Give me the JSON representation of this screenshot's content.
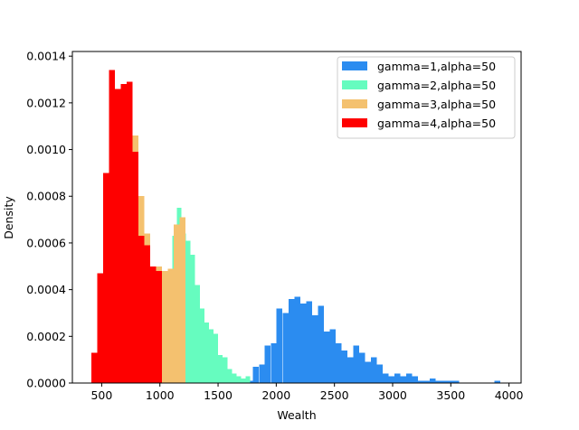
{
  "chart_data": {
    "type": "bar",
    "title": "",
    "xlabel": "Wealth",
    "ylabel": "Density",
    "xlim": [
      248,
      4104
    ],
    "ylim": [
      0,
      0.00142
    ],
    "xticks": [
      500,
      1000,
      1500,
      2000,
      2500,
      3000,
      3500,
      4000
    ],
    "xtick_labels": [
      "500",
      "1000",
      "1500",
      "2000",
      "2500",
      "3000",
      "3500",
      "4000"
    ],
    "yticks": [
      0,
      0.0002,
      0.0004,
      0.0006,
      0.0008,
      0.001,
      0.0012,
      0.0014
    ],
    "ytick_labels": [
      "0.0000",
      "0.0002",
      "0.0004",
      "0.0006",
      "0.0008",
      "0.0010",
      "0.0012",
      "0.0014"
    ],
    "grid": false,
    "legend_position": "top-right",
    "series": [
      {
        "name": "gamma=1,alpha=50",
        "color": "#2b8cf0",
        "bin_width": 50.6,
        "x": [
          1725,
          1775,
          1826,
          1877,
          1927,
          1978,
          2028,
          2079,
          2130,
          2180,
          2231,
          2281,
          2332,
          2383,
          2433,
          2484,
          2535,
          2585,
          2636,
          2686,
          2737,
          2788,
          2838,
          2889,
          2939,
          2990,
          3041,
          3091,
          3142,
          3193,
          3243,
          3294,
          3344,
          3395,
          3446,
          3496,
          3547,
          3598,
          3648,
          3699,
          3749,
          3800,
          3851,
          3901
        ],
        "values": [
          2e-05,
          1e-05,
          7e-05,
          8e-05,
          0.00016,
          0.00017,
          0.00032,
          0.0003,
          0.00036,
          0.00037,
          0.00034,
          0.00035,
          0.00029,
          0.00033,
          0.00022,
          0.00023,
          0.00017,
          0.00014,
          0.00011,
          0.00016,
          0.00013,
          9e-05,
          0.00011,
          8e-05,
          4e-05,
          3e-05,
          4e-05,
          3e-05,
          4e-05,
          3e-05,
          1e-05,
          1e-05,
          2e-05,
          1e-05,
          1e-05,
          1e-05,
          1e-05,
          0.0,
          0.0,
          0.0,
          0.0,
          0.0,
          0.0,
          1e-05
        ]
      },
      {
        "name": "gamma=2,alpha=50",
        "color": "#66fcbf",
        "bin_width": 39.5,
        "x": [
          888,
          928,
          967,
          1007,
          1046,
          1086,
          1125,
          1165,
          1204,
          1244,
          1283,
          1323,
          1362,
          1402,
          1441,
          1481,
          1520,
          1560,
          1599,
          1639,
          1678,
          1718,
          1757
        ],
        "values": [
          1e-05,
          6e-05,
          0.00012,
          0.00026,
          0.00031,
          0.00047,
          0.00063,
          0.00075,
          0.00064,
          0.00061,
          0.00055,
          0.00042,
          0.00032,
          0.00026,
          0.00023,
          0.00021,
          0.00012,
          0.00011,
          6e-05,
          4e-05,
          3e-05,
          2e-05,
          3e-05
        ]
      },
      {
        "name": "gamma=3,alpha=50",
        "color": "#f4c16f",
        "bin_width": 50.6,
        "x": [
          587,
          638,
          688,
          739,
          790,
          840,
          891,
          941,
          992,
          1043,
          1093,
          1144,
          1194
        ],
        "values": [
          7e-05,
          0.00024,
          0.00044,
          0.00066,
          0.00106,
          0.0008,
          0.00064,
          0.00049,
          0.0005,
          0.00048,
          0.00049,
          0.00068,
          0.00071
        ]
      },
      {
        "name": "gamma=4,alpha=50",
        "color": "#fe0000",
        "bin_width": 50.6,
        "x": [
          435,
          486,
          537,
          587,
          638,
          688,
          739,
          790,
          840,
          891,
          941,
          992
        ],
        "values": [
          0.00013,
          0.00047,
          0.0009,
          0.00134,
          0.00126,
          0.00128,
          0.00129,
          0.00099,
          0.00063,
          0.00059,
          0.0005,
          0.00048
        ]
      }
    ]
  }
}
